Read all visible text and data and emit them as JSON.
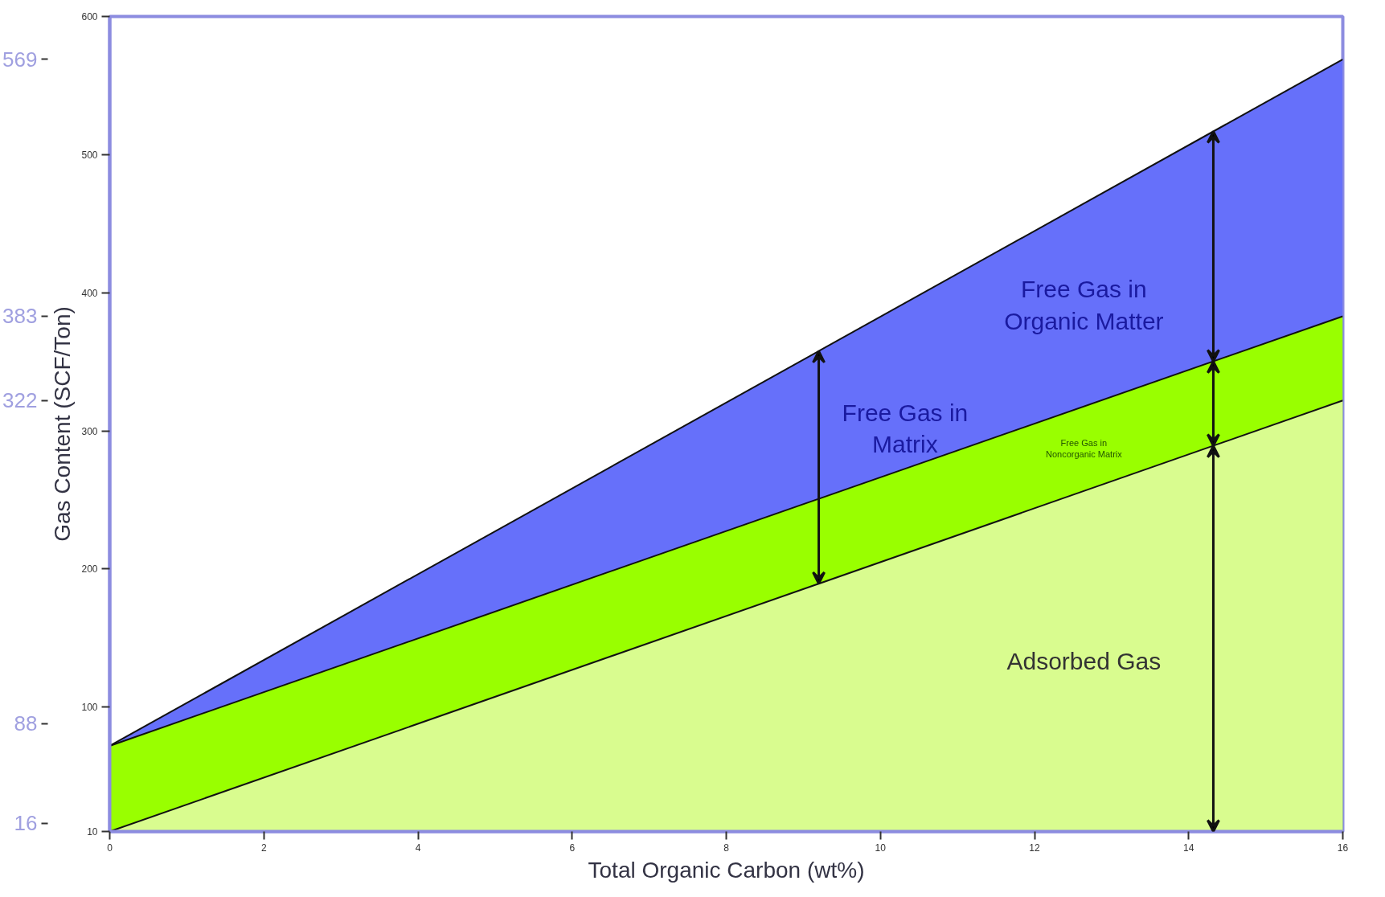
{
  "chart_data": {
    "type": "area",
    "xlabel": "Total Organic Carbon (wt%)",
    "ylabel": "Gas Content (SCF/Ton)",
    "x": [
      0,
      16
    ],
    "series": [
      {
        "name": "Adsorbed Gas",
        "color": "#d9fc8f",
        "values": [
          10,
          322
        ]
      },
      {
        "name": "Free Gas in\nNoncorganic Matrix",
        "color": "#99ff00",
        "values": [
          72,
          383
        ]
      },
      {
        "name": "Free Gas in\nOrganic Matter",
        "color": "#6670fa",
        "values": [
          72,
          569
        ]
      }
    ],
    "annotations": [
      "Free Gas in\nMatrix"
    ],
    "xlim": [
      0,
      16
    ],
    "xticks": [
      0,
      2,
      4,
      6,
      8,
      10,
      12,
      14,
      16
    ],
    "ylim": [
      10,
      600
    ],
    "yticks": [
      10,
      100,
      200,
      300,
      400,
      500,
      600
    ],
    "y2lim": [
      10,
      600
    ],
    "y2ticks": [
      16,
      88,
      322,
      383,
      569
    ]
  }
}
